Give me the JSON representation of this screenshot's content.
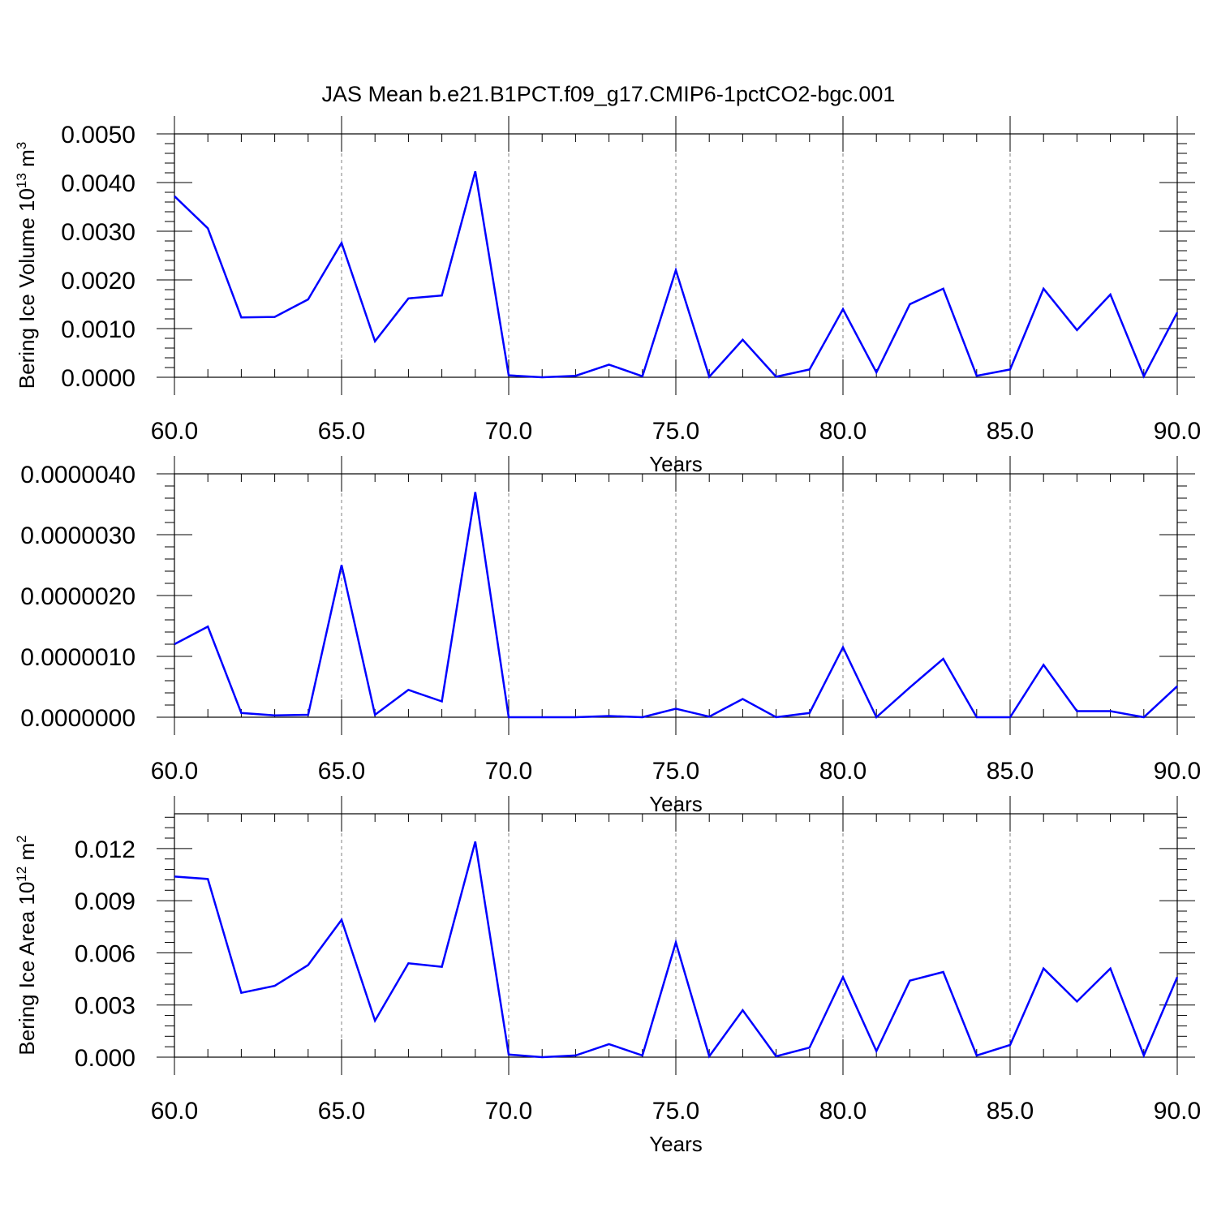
{
  "title": "JAS Mean b.e21.B1PCT.f09_g17.CMIP6-1pctCO2-bgc.001",
  "colors": {
    "line": "#0000ff",
    "axis": "#000000",
    "grid": "#808080",
    "background": "#ffffff"
  },
  "chart_data": [
    {
      "type": "line",
      "title": "JAS Mean b.e21.B1PCT.f09_g17.CMIP6-1pctCO2-bgc.001",
      "xlabel": "Years",
      "ylabel": {
        "prefix": "Bering Ice Volume 10",
        "exponent": "13",
        "unit": " m",
        "unit_exponent": "3"
      },
      "xlim": [
        60,
        90
      ],
      "ylim": [
        0,
        0.005
      ],
      "xticks": [
        "60.0",
        "65.0",
        "70.0",
        "75.0",
        "80.0",
        "85.0",
        "90.0"
      ],
      "xtick_values": [
        60,
        65,
        70,
        75,
        80,
        85,
        90
      ],
      "yticks": [
        "0.0000",
        "0.0010",
        "0.0020",
        "0.0030",
        "0.0040",
        "0.0050"
      ],
      "ytick_values": [
        0,
        0.001,
        0.002,
        0.003,
        0.004,
        0.005
      ],
      "x_grid": "dashed vertical lines at major x ticks",
      "x": [
        60,
        61,
        62,
        63,
        64,
        65,
        66,
        67,
        68,
        69,
        70,
        71,
        72,
        73,
        74,
        75,
        76,
        77,
        78,
        79,
        80,
        81,
        82,
        83,
        84,
        85,
        86,
        87,
        88,
        89,
        90
      ],
      "values": [
        0.00372,
        0.00306,
        0.00123,
        0.00124,
        0.0016,
        0.00276,
        0.00074,
        0.00162,
        0.00168,
        0.00423,
        4e-05,
        0.0,
        3e-05,
        0.00026,
        2e-05,
        0.0022,
        1e-05,
        0.00077,
        1e-05,
        0.00016,
        0.0014,
        0.0001,
        0.0015,
        0.00182,
        3e-05,
        0.00016,
        0.00182,
        0.00097,
        0.0017,
        2e-05,
        0.00133
      ]
    },
    {
      "type": "line",
      "xlabel": "Years",
      "ylabel": "",
      "xlim": [
        60,
        90
      ],
      "ylim": [
        0,
        4e-06
      ],
      "xticks": [
        "60.0",
        "65.0",
        "70.0",
        "75.0",
        "80.0",
        "85.0",
        "90.0"
      ],
      "xtick_values": [
        60,
        65,
        70,
        75,
        80,
        85,
        90
      ],
      "yticks": [
        "0.0000000",
        "0.0000010",
        "0.0000020",
        "0.0000030",
        "0.0000040"
      ],
      "ytick_values": [
        0,
        1e-06,
        2e-06,
        3e-06,
        4e-06
      ],
      "x_grid": "dashed vertical lines at major x ticks",
      "x": [
        60,
        61,
        62,
        63,
        64,
        65,
        66,
        67,
        68,
        69,
        70,
        71,
        72,
        73,
        74,
        75,
        76,
        77,
        78,
        79,
        80,
        81,
        82,
        83,
        84,
        85,
        86,
        87,
        88,
        89,
        90
      ],
      "values": [
        1.2e-06,
        1.49e-06,
        7e-08,
        3e-08,
        4e-08,
        2.5e-06,
        4e-08,
        4.5e-07,
        2.6e-07,
        3.7e-06,
        0.0,
        0.0,
        0.0,
        2e-08,
        0.0,
        1.4e-07,
        1e-08,
        3e-07,
        0.0,
        7e-08,
        1.15e-06,
        0.0,
        4.9e-07,
        9.6e-07,
        0.0,
        0.0,
        8.6e-07,
        1e-07,
        1e-07,
        0.0,
        5.1e-07
      ]
    },
    {
      "type": "line",
      "xlabel": "Years",
      "ylabel": {
        "prefix": "Bering Ice Area 10",
        "exponent": "12",
        "unit": " m",
        "unit_exponent": "2"
      },
      "xlim": [
        60,
        90
      ],
      "ylim": [
        0,
        0.014
      ],
      "xticks": [
        "60.0",
        "65.0",
        "70.0",
        "75.0",
        "80.0",
        "85.0",
        "90.0"
      ],
      "xtick_values": [
        60,
        65,
        70,
        75,
        80,
        85,
        90
      ],
      "yticks": [
        "0.000",
        "0.003",
        "0.006",
        "0.009",
        "0.012"
      ],
      "ytick_values": [
        0,
        0.003,
        0.006,
        0.009,
        0.012
      ],
      "x_grid": "dashed vertical lines at major x ticks",
      "x": [
        60,
        61,
        62,
        63,
        64,
        65,
        66,
        67,
        68,
        69,
        70,
        71,
        72,
        73,
        74,
        75,
        76,
        77,
        78,
        79,
        80,
        81,
        82,
        83,
        84,
        85,
        86,
        87,
        88,
        89,
        90
      ],
      "values": [
        0.01039,
        0.01025,
        0.0037,
        0.0041,
        0.0053,
        0.0079,
        0.0021,
        0.0054,
        0.0052,
        0.0124,
        0.00015,
        0.0,
        0.0001,
        0.00075,
        0.0001,
        0.0066,
        5e-05,
        0.0027,
        5e-05,
        0.00055,
        0.0046,
        0.00035,
        0.0044,
        0.0049,
        0.0001,
        0.0007,
        0.0051,
        0.0032,
        0.0051,
        0.0001,
        0.0046
      ]
    }
  ]
}
